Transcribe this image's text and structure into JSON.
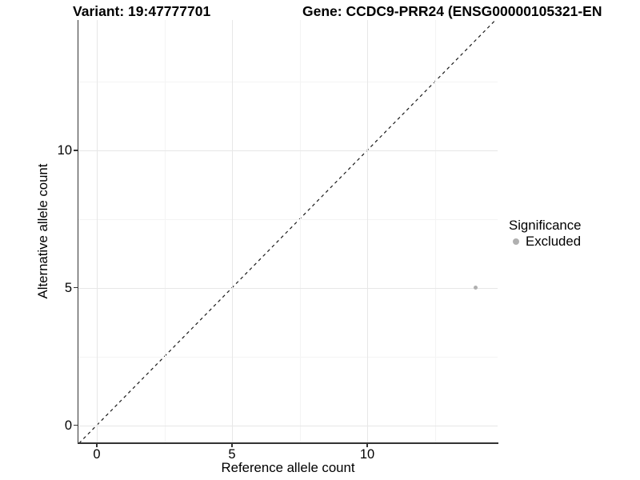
{
  "chart_data": {
    "type": "scatter",
    "titles": {
      "variant": "Variant: 19:47777701",
      "gene": "Gene: CCDC9-PRR24 (ENSG00000105321-EN"
    },
    "xlabel": "Reference allele count",
    "ylabel": "Alternative allele count",
    "x_ticks": [
      0,
      5,
      10
    ],
    "y_ticks": [
      0,
      5,
      10
    ],
    "x_minor_ticks": [
      2.5,
      7.5,
      12.5
    ],
    "y_minor_ticks": [
      2.5,
      7.5,
      12.5
    ],
    "xlim": [
      -0.68,
      14.82
    ],
    "ylim": [
      -0.66,
      14.74
    ],
    "grid": true,
    "legend_position": "right",
    "reference_line": {
      "type": "identity",
      "slope": 1,
      "intercept": 0,
      "style": "dashed",
      "color": "#1a1a1a"
    },
    "series": [
      {
        "name": "Excluded",
        "color": "#b0b0b0",
        "points": [
          {
            "x": 14,
            "y": 5
          }
        ]
      }
    ],
    "legend": {
      "title": "Significance",
      "entries": [
        {
          "label": "Excluded",
          "color": "#b0b0b0"
        }
      ]
    },
    "colors": {
      "axis": "#333333",
      "grid_major": "#e7e7e7",
      "grid_minor": "#f4f4f4",
      "text": "#000000"
    }
  }
}
